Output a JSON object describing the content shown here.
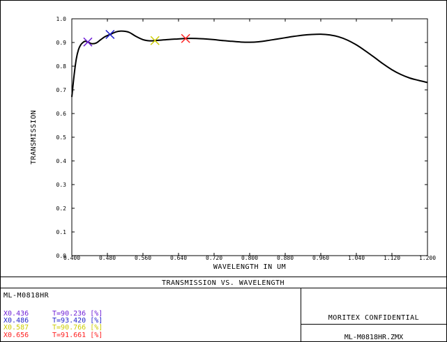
{
  "chart_data": {
    "type": "line",
    "title": "TRANSMISSION VS. WAVELENGTH",
    "xlabel": "WAVELENGTH IN UM",
    "ylabel": "TRANSMISSION",
    "xlim": [
      0.4,
      1.2
    ],
    "ylim": [
      0.0,
      1.0
    ],
    "x_ticks": [
      "0.400",
      "0.480",
      "0.560",
      "0.640",
      "0.720",
      "0.800",
      "0.880",
      "0.960",
      "1.040",
      "1.120",
      "1.200"
    ],
    "y_ticks": [
      "0.0",
      "0.1",
      "0.2",
      "0.3",
      "0.4",
      "0.5",
      "0.6",
      "0.7",
      "0.8",
      "0.9",
      "1.0"
    ],
    "grid": false,
    "series": [
      {
        "color": "#000000",
        "x": [
          0.4,
          0.405,
          0.41,
          0.415,
          0.42,
          0.425,
          0.43,
          0.436,
          0.445,
          0.455,
          0.465,
          0.475,
          0.486,
          0.5,
          0.51,
          0.52,
          0.53,
          0.545,
          0.56,
          0.575,
          0.587,
          0.6,
          0.62,
          0.64,
          0.656,
          0.68,
          0.7,
          0.72,
          0.74,
          0.76,
          0.78,
          0.8,
          0.82,
          0.84,
          0.86,
          0.88,
          0.9,
          0.92,
          0.94,
          0.96,
          0.98,
          1.0,
          1.02,
          1.04,
          1.06,
          1.08,
          1.1,
          1.12,
          1.14,
          1.16,
          1.18,
          1.2
        ],
        "y": [
          0.67,
          0.76,
          0.83,
          0.87,
          0.89,
          0.9,
          0.905,
          0.902,
          0.895,
          0.898,
          0.912,
          0.925,
          0.934,
          0.945,
          0.948,
          0.947,
          0.942,
          0.925,
          0.912,
          0.907,
          0.908,
          0.91,
          0.913,
          0.915,
          0.917,
          0.917,
          0.915,
          0.912,
          0.908,
          0.905,
          0.902,
          0.901,
          0.903,
          0.908,
          0.914,
          0.92,
          0.926,
          0.931,
          0.934,
          0.935,
          0.932,
          0.924,
          0.91,
          0.89,
          0.865,
          0.838,
          0.81,
          0.785,
          0.765,
          0.75,
          0.74,
          0.731
        ]
      }
    ],
    "markers": [
      {
        "x": 0.436,
        "y": 0.902,
        "color": "#6e1fd6"
      },
      {
        "x": 0.486,
        "y": 0.934,
        "color": "#2222cc"
      },
      {
        "x": 0.587,
        "y": 0.908,
        "color": "#cccc00"
      },
      {
        "x": 0.656,
        "y": 0.917,
        "color": "#ff2020"
      }
    ]
  },
  "footer": {
    "title": "TRANSMISSION VS. WAVELENGTH",
    "file_label": "ML-M0818HR",
    "confidential": "MORITEX CONFIDENTIAL",
    "filename": "ML-M0818HR.ZMX"
  },
  "legend": [
    {
      "marker": "X",
      "wl": "0.436",
      "t_label": "T=",
      "t_value": "90.236",
      "unit": "[%]",
      "color": "#6e1fd6"
    },
    {
      "marker": "X",
      "wl": "0.486",
      "t_label": "T=",
      "t_value": "93.420",
      "unit": "[%]",
      "color": "#2222cc"
    },
    {
      "marker": "X",
      "wl": "0.587",
      "t_label": "T=",
      "t_value": "90.766",
      "unit": "[%]",
      "color": "#cccc00"
    },
    {
      "marker": "X",
      "wl": "0.656",
      "t_label": "T=",
      "t_value": "91.661",
      "unit": "[%]",
      "color": "#ff2020"
    }
  ]
}
